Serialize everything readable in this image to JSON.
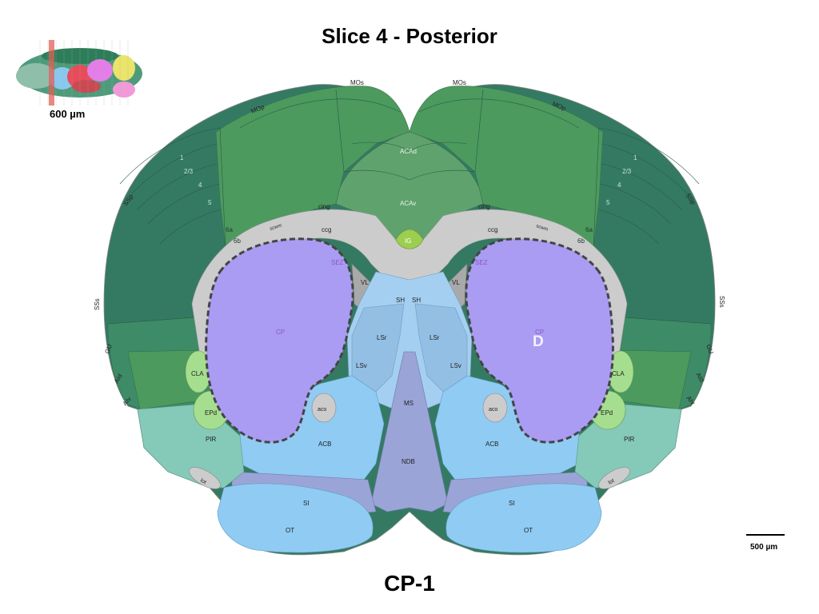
{
  "title": "Slice 4 - Posterior",
  "footer_label": "CP-1",
  "thumbnail": {
    "scale_label": "600 µm"
  },
  "scale_bar": {
    "label": "500 µm"
  },
  "colors": {
    "isocortex_light": "#4c9a5e",
    "isocortex_dark": "#347a63",
    "isocortex_mid": "#3e8b67",
    "acc": "#5fa26d",
    "fiber": "#cccccc",
    "striatum_cp": "#a99cf2",
    "striatum_ventral": "#8fcbf2",
    "septum": "#a5cff0",
    "pallidum": "#9ba4d6",
    "olfactory": "#85c9b9",
    "cla": "#a5de8e",
    "ig": "#9cce4f",
    "ventricle": "#a9a9a9",
    "highlight_outline": "#444444"
  },
  "labels": {
    "mos": "MOs",
    "mop": "MOp",
    "ssp": "SSp",
    "sss": "SSs",
    "gu": "GU",
    "aid": "AId",
    "aiv": "AIv",
    "acad": "ACAd",
    "acav": "ACAv",
    "cing": "cing",
    "ccg": "ccg",
    "scwm": "scwm",
    "ig": "IG",
    "sez": "SEZ",
    "vl": "VL",
    "sh": "SH",
    "lsr": "LSr",
    "lsv": "LSv",
    "cp": "CP",
    "cla": "CLA",
    "epd": "EPd",
    "aco": "aco",
    "acb": "ACB",
    "ms": "MS",
    "ndb": "NDB",
    "pir": "PIR",
    "lot": "lot",
    "si": "SI",
    "ot": "OT",
    "layer_1": "1",
    "layer_23": "2/3",
    "layer_4": "4",
    "layer_5": "5",
    "layer_6a": "6a",
    "layer_6b": "6b",
    "highlight_marker": "D"
  }
}
